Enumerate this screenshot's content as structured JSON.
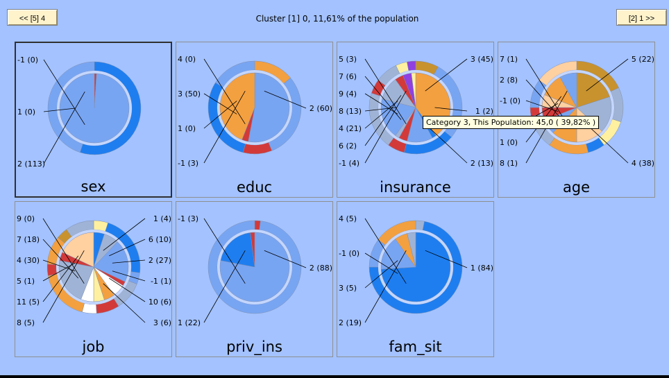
{
  "header": {
    "prev_label": "<< [5] 4",
    "title": "Cluster [1] 0, 11,61% of the population",
    "next_label": "[2] 1 >>"
  },
  "tooltip": "Category 3, This Population: 45,0 ( 39,82% )",
  "panels": [
    {
      "title": "sex",
      "outer": [
        {
          "v": 55,
          "c": "#1e7ef0"
        },
        {
          "v": 45,
          "c": "#78a5f2"
        }
      ],
      "inner": [
        {
          "v": 1,
          "c": "#d23a3a"
        },
        {
          "v": 99,
          "c": "#78a5f2"
        }
      ],
      "labels": [
        {
          "text": "-1 (0)",
          "pos": "left"
        },
        {
          "text": "1 (0)",
          "pos": "left"
        },
        {
          "text": "2 (113)",
          "pos": "left"
        }
      ]
    },
    {
      "title": "educ",
      "outer": [
        {
          "v": 14,
          "c": "#f3a040"
        },
        {
          "v": 30,
          "c": "#78a5f2"
        },
        {
          "v": 10,
          "c": "#d23a3a"
        },
        {
          "v": 30,
          "c": "#1e7ef0"
        },
        {
          "v": 16,
          "c": "#78a5f2"
        }
      ],
      "inner": [
        {
          "v": 53,
          "c": "#78a5f2"
        },
        {
          "v": 3,
          "c": "#d23a3a"
        },
        {
          "v": 44,
          "c": "#f3a040"
        }
      ],
      "labels": [
        {
          "text": "4 (0)",
          "pos": "left"
        },
        {
          "text": "3 (50)",
          "pos": "left"
        },
        {
          "text": "2 (60)",
          "pos": "right"
        },
        {
          "text": "1 (0)",
          "pos": "left"
        },
        {
          "text": "-1 (3)",
          "pos": "left"
        }
      ]
    },
    {
      "title": "insurance",
      "outer": [
        {
          "v": 8,
          "c": "#c8922e"
        },
        {
          "v": 28,
          "c": "#78a5f2"
        },
        {
          "v": 18,
          "c": "#1e7ef0"
        },
        {
          "v": 6,
          "c": "#d23a3a"
        },
        {
          "v": 20,
          "c": "#9fb3d6"
        },
        {
          "v": 5,
          "c": "#d23a3a"
        },
        {
          "v": 8,
          "c": "#9fb3d6"
        },
        {
          "v": 4,
          "c": "#fff0a0"
        },
        {
          "v": 3,
          "c": "#9040e0"
        }
      ],
      "inner": [
        {
          "v": 40,
          "c": "#f3a040"
        },
        {
          "v": 2,
          "c": "#1e7ef0"
        },
        {
          "v": 12,
          "c": "#78a5f2"
        },
        {
          "v": 4,
          "c": "#d23a3a"
        },
        {
          "v": 2,
          "c": "#9fb3d6"
        },
        {
          "v": 19,
          "c": "#78a5f2"
        },
        {
          "v": 11,
          "c": "#9fb3d6"
        },
        {
          "v": 4,
          "c": "#d23a3a"
        },
        {
          "v": 4,
          "c": "#9040e0"
        },
        {
          "v": 2,
          "c": "#fff0a0"
        }
      ],
      "labels": [
        {
          "text": "5 (3)",
          "pos": "left"
        },
        {
          "text": "3 (45)",
          "pos": "right"
        },
        {
          "text": "7 (6)",
          "pos": "left"
        },
        {
          "text": "9 (4)",
          "pos": "left"
        },
        {
          "text": "1 (2)",
          "pos": "right"
        },
        {
          "text": "8 (13)",
          "pos": "left"
        },
        {
          "text": "4 (21)",
          "pos": "left"
        },
        {
          "text": "6 (2)",
          "pos": "left"
        },
        {
          "text": "2 (13)",
          "pos": "right"
        },
        {
          "text": "-1 (4)",
          "pos": "left"
        }
      ]
    },
    {
      "title": "age",
      "outer": [
        {
          "v": 18,
          "c": "#c8922e"
        },
        {
          "v": 12,
          "c": "#9fb3d6"
        },
        {
          "v": 10,
          "c": "#fff0a0"
        },
        {
          "v": 6,
          "c": "#1e7ef0"
        },
        {
          "v": 14,
          "c": "#f3a040"
        },
        {
          "v": 12,
          "c": "#9fb3d6"
        },
        {
          "v": 3,
          "c": "#d23a3a"
        },
        {
          "v": 10,
          "c": "#78a5f2"
        },
        {
          "v": 15,
          "c": "#ffd0a0"
        }
      ],
      "inner": [
        {
          "v": 20,
          "c": "#c8922e"
        },
        {
          "v": 17,
          "c": "#9fb3d6"
        },
        {
          "v": 13,
          "c": "#ffd0a0"
        },
        {
          "v": 12,
          "c": "#f3a040"
        },
        {
          "v": 7,
          "c": "#78a5f2"
        },
        {
          "v": 6,
          "c": "#d23a3a"
        },
        {
          "v": 6,
          "c": "#ffd0a0"
        },
        {
          "v": 11,
          "c": "#f3a040"
        },
        {
          "v": 8,
          "c": "#78a5f2"
        }
      ],
      "labels": [
        {
          "text": "7 (1)",
          "pos": "left"
        },
        {
          "text": "2 (8)",
          "pos": "left"
        },
        {
          "text": "5 (22)",
          "pos": "right"
        },
        {
          "text": "-1 (0)",
          "pos": "left"
        },
        {
          "text": "6 (6)",
          "pos": "left"
        },
        {
          "text": "4 (38)",
          "pos": "right"
        },
        {
          "text": "1 (0)",
          "pos": "left"
        },
        {
          "text": "8 (1)",
          "pos": "left"
        }
      ]
    },
    {
      "title": "job",
      "outer": [
        {
          "v": 5,
          "c": "#fff0a0"
        },
        {
          "v": 22,
          "c": "#1e7ef0"
        },
        {
          "v": 4,
          "c": "#78a5f2"
        },
        {
          "v": 10,
          "c": "#9fb3d6"
        },
        {
          "v": 8,
          "c": "#d23a3a"
        },
        {
          "v": 5,
          "c": "#ffffff"
        },
        {
          "v": 18,
          "c": "#f3a040"
        },
        {
          "v": 4,
          "c": "#d23a3a"
        },
        {
          "v": 10,
          "c": "#f3a040"
        },
        {
          "v": 4,
          "c": "#c8922e"
        },
        {
          "v": 10,
          "c": "#9fb3d6"
        }
      ],
      "inner": [
        {
          "v": 5,
          "c": "#1e7ef0"
        },
        {
          "v": 7,
          "c": "#9fb3d6"
        },
        {
          "v": 20,
          "c": "#78a5f2"
        },
        {
          "v": 2,
          "c": "#d23a3a"
        },
        {
          "v": 6,
          "c": "#ffffff"
        },
        {
          "v": 5,
          "c": "#f3a040"
        },
        {
          "v": 5,
          "c": "#fff0a0"
        },
        {
          "v": 6,
          "c": "#ffffff"
        },
        {
          "v": 22,
          "c": "#9fb3d6"
        },
        {
          "v": 4,
          "c": "#d23a3a"
        },
        {
          "v": 18,
          "c": "#ffd0a0"
        }
      ],
      "labels": [
        {
          "text": "9 (0)",
          "pos": "left"
        },
        {
          "text": "1 (4)",
          "pos": "right"
        },
        {
          "text": "6 (10)",
          "pos": "right"
        },
        {
          "text": "7 (18)",
          "pos": "left"
        },
        {
          "text": "2 (27)",
          "pos": "right"
        },
        {
          "text": "4 (30)",
          "pos": "left"
        },
        {
          "text": "-1 (1)",
          "pos": "right"
        },
        {
          "text": "5 (1)",
          "pos": "left"
        },
        {
          "text": "10 (6)",
          "pos": "right"
        },
        {
          "text": "11 (5)",
          "pos": "left"
        },
        {
          "text": "3 (6)",
          "pos": "right"
        },
        {
          "text": "8 (5)",
          "pos": "left"
        }
      ]
    },
    {
      "title": "priv_ins",
      "outer": [
        {
          "v": 2,
          "c": "#d23a3a"
        },
        {
          "v": 98,
          "c": "#78a5f2"
        }
      ],
      "inner": [
        {
          "v": 78,
          "c": "#78a5f2"
        },
        {
          "v": 20,
          "c": "#1e7ef0"
        },
        {
          "v": 2,
          "c": "#d23a3a"
        }
      ],
      "labels": [
        {
          "text": "-1 (3)",
          "pos": "left"
        },
        {
          "text": "2 (88)",
          "pos": "right"
        },
        {
          "text": "1 (22)",
          "pos": "left"
        }
      ]
    },
    {
      "title": "fam_sit",
      "outer": [
        {
          "v": 3,
          "c": "#9fb3d6"
        },
        {
          "v": 72,
          "c": "#1e7ef0"
        },
        {
          "v": 10,
          "c": "#78a5f2"
        },
        {
          "v": 15,
          "c": "#f3a040"
        }
      ],
      "inner": [
        {
          "v": 74,
          "c": "#1e7ef0"
        },
        {
          "v": 16,
          "c": "#78a5f2"
        },
        {
          "v": 6,
          "c": "#f3a040"
        },
        {
          "v": 4,
          "c": "#9fb3d6"
        }
      ],
      "labels": [
        {
          "text": "4 (5)",
          "pos": "left"
        },
        {
          "text": "-1 (0)",
          "pos": "left"
        },
        {
          "text": "1 (84)",
          "pos": "right"
        },
        {
          "text": "3 (5)",
          "pos": "left"
        },
        {
          "text": "2 (19)",
          "pos": "left"
        }
      ]
    }
  ]
}
